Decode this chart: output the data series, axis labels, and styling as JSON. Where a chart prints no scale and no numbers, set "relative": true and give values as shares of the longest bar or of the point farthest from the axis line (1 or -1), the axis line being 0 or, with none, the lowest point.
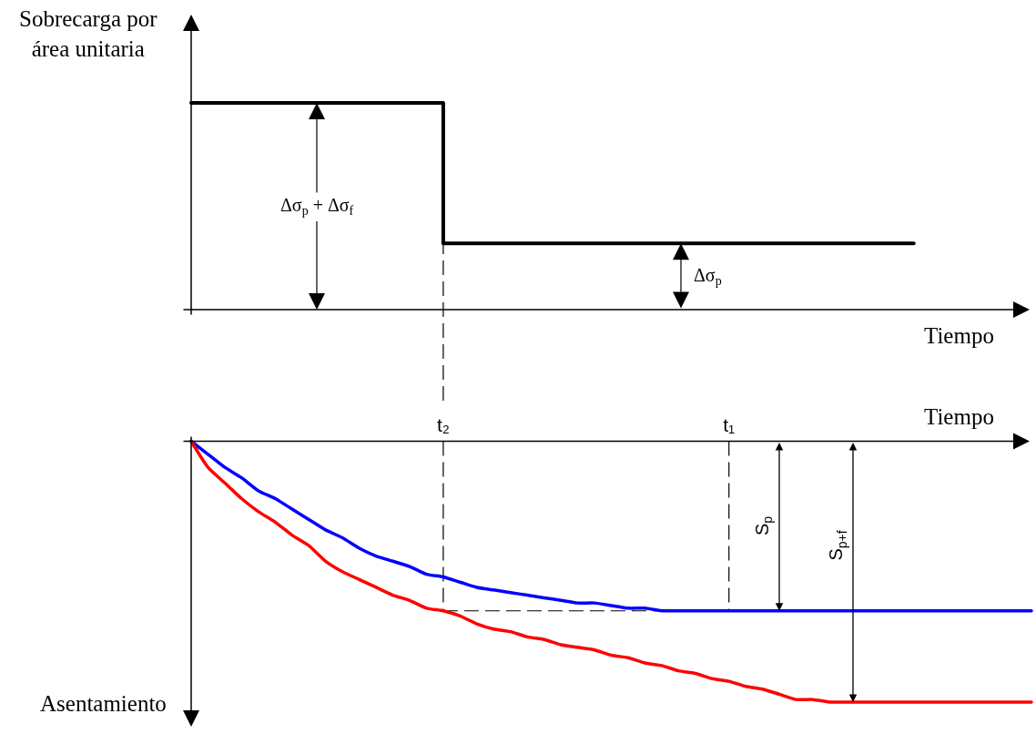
{
  "chart_data": [
    {
      "type": "step",
      "relative": true,
      "tick_labels": false,
      "xlabel": "Tiempo",
      "ylabel": "Sobrecarga por área unitaria",
      "categories": [
        null,
        null,
        null,
        null,
        null,
        null,
        null,
        null,
        null,
        null,
        null,
        null,
        null,
        null,
        null,
        "t₂",
        null,
        null,
        null,
        null,
        null,
        null,
        null,
        null,
        null,
        null,
        null,
        null,
        null,
        null,
        null,
        null,
        "t₁",
        null,
        null,
        null,
        null,
        null,
        null,
        null,
        null,
        null,
        null,
        null,
        null,
        null,
        null,
        null,
        null,
        null,
        null
      ],
      "values": [
        1,
        1,
        1,
        1,
        1,
        1,
        1,
        1,
        1,
        1,
        1,
        1,
        1,
        1,
        1,
        0.32,
        0.32,
        0.32,
        0.32,
        0.32,
        0.32,
        0.32,
        0.32,
        0.32,
        0.32,
        0.32,
        0.32,
        0.32,
        0.32,
        0.32,
        0.32,
        0.32,
        0.32,
        0.32,
        0.32,
        0.32,
        0.32,
        0.32,
        0.32,
        0.32,
        0.32,
        0.32,
        0.32,
        0.32,
        null,
        null,
        null,
        null,
        null,
        null,
        null
      ],
      "color": "#000000",
      "annotations": [
        "Δσ$_{p}$ + Δσ$_{f}$",
        "Δσ$_{p}$"
      ],
      "ref_lines": [
        {
          "axis": "x",
          "value": "t₂",
          "line_style": "dashed"
        }
      ]
    },
    {
      "type": "line",
      "relative": true,
      "tick_labels": "x",
      "xlabel": "Tiempo",
      "ylabel": "Asentamiento",
      "categories": [
        null,
        null,
        null,
        null,
        null,
        null,
        null,
        null,
        null,
        null,
        null,
        null,
        null,
        null,
        null,
        "t₂",
        null,
        null,
        null,
        null,
        null,
        null,
        null,
        null,
        null,
        null,
        null,
        null,
        null,
        null,
        null,
        null,
        "t₁",
        null,
        null,
        null,
        null,
        null,
        null,
        null,
        null,
        null,
        null,
        null,
        null,
        null,
        null,
        null,
        null,
        null,
        null
      ],
      "series": [
        {
          "color": "#0000ff",
          "values": [
            0,
            -0.05,
            -0.1,
            -0.14,
            -0.19,
            -0.22,
            -0.26,
            -0.3,
            -0.34,
            -0.37,
            -0.41,
            -0.44,
            -0.46,
            -0.48,
            -0.51,
            -0.52,
            -0.54,
            -0.56,
            -0.57,
            -0.58,
            -0.59,
            -0.6,
            -0.61,
            -0.62,
            -0.62,
            -0.63,
            -0.64,
            -0.64,
            -0.65,
            -0.65,
            -0.65,
            -0.65,
            -0.65,
            -0.65,
            -0.65,
            -0.65,
            -0.65,
            -0.65,
            -0.65,
            -0.65,
            -0.65,
            -0.65,
            -0.65,
            -0.65,
            -0.65,
            -0.65,
            -0.65,
            -0.65,
            -0.65,
            -0.65,
            -0.65
          ]
        },
        {
          "color": "#ff0000",
          "values": [
            0,
            -0.1,
            -0.16,
            -0.22,
            -0.27,
            -0.31,
            -0.36,
            -0.4,
            -0.46,
            -0.5,
            -0.53,
            -0.56,
            -0.59,
            -0.61,
            -0.64,
            -0.65,
            -0.67,
            -0.7,
            -0.72,
            -0.73,
            -0.75,
            -0.76,
            -0.78,
            -0.79,
            -0.8,
            -0.82,
            -0.83,
            -0.85,
            -0.86,
            -0.88,
            -0.89,
            -0.91,
            -0.92,
            -0.94,
            -0.95,
            -0.97,
            -0.99,
            -0.99,
            -1,
            -1,
            -1,
            -1,
            -1,
            -1,
            -1,
            -1,
            -1,
            -1,
            -1,
            -1,
            -1
          ]
        }
      ],
      "annotations": [
        "S$_{p}$",
        "S$_{p+f}$"
      ],
      "ref_lines": [
        {
          "axis": "x",
          "value": "t₂",
          "line_style": "dashed"
        },
        {
          "axis": "x",
          "value": "t₁",
          "line_style": "dashed"
        },
        {
          "axis": "y",
          "value": -0.65,
          "line_style": "dashed"
        }
      ]
    }
  ]
}
